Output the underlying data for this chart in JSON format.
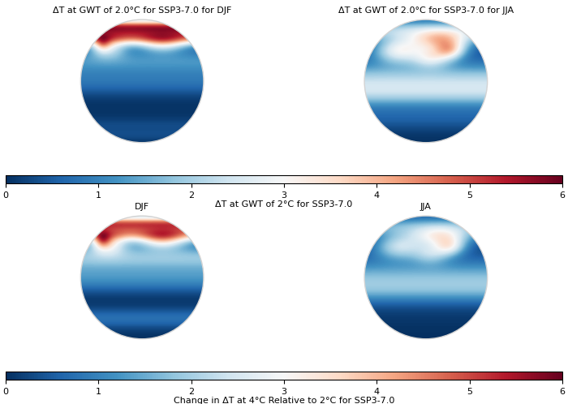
{
  "title_top_left": "ΔT at GWT of 2.0°C for SSP3-7.0 for DJF",
  "title_top_right": "ΔT at GWT of 2.0°C for SSP3-7.0 for JJA",
  "title_bottom_left": "DJF",
  "title_bottom_right": "JJA",
  "colorbar1_label": "ΔT at GWT of 2°C for SSP3-7.0",
  "colorbar2_label": "Change in ΔT at 4°C Relative to 2°C for SSP3-7.0",
  "vmin": 0,
  "vmax": 6,
  "colormap": "RdBu_r",
  "cbar_ticks": [
    0,
    1,
    2,
    3,
    4,
    5,
    6
  ],
  "background_color": "white",
  "figsize": [
    7.0,
    4.98
  ],
  "dpi": 100,
  "title_fontsize": 8,
  "cbar_fontsize": 8,
  "cbar_tick_fontsize": 8
}
